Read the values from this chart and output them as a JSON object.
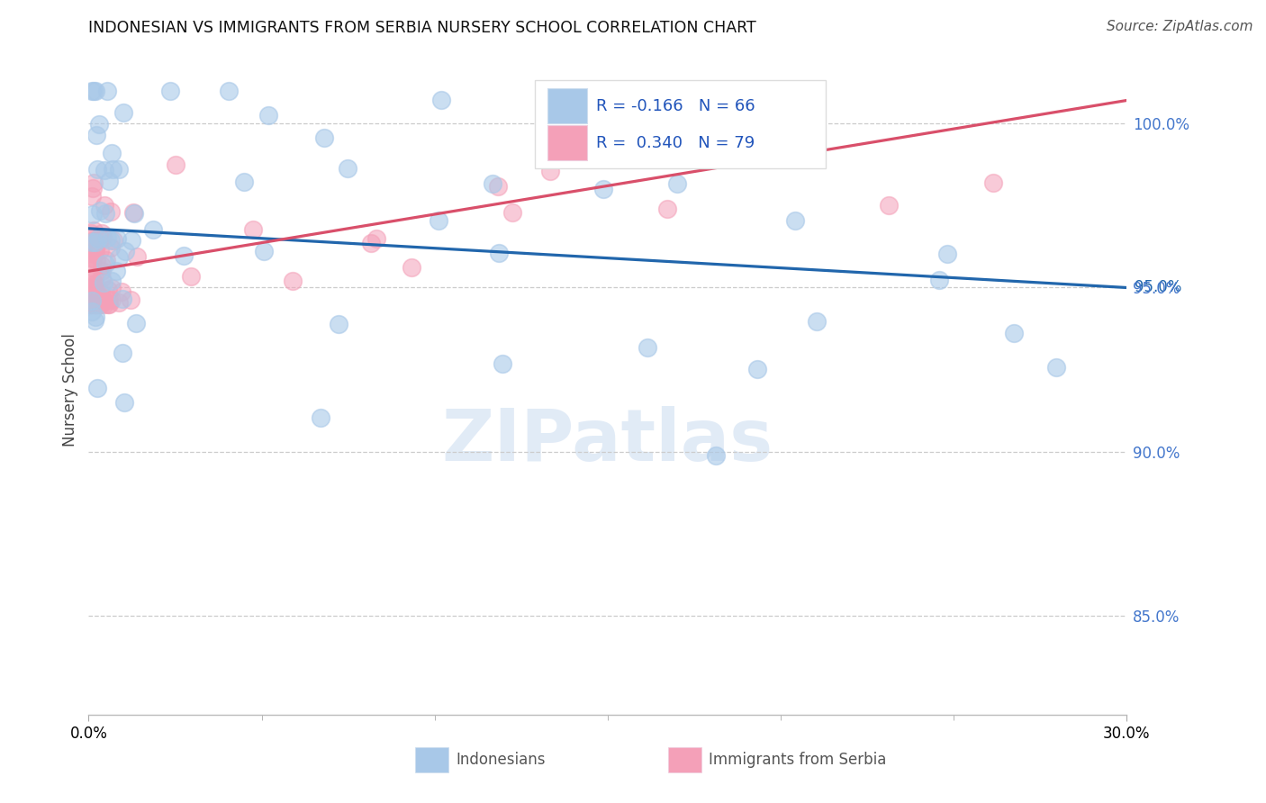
{
  "title": "INDONESIAN VS IMMIGRANTS FROM SERBIA NURSERY SCHOOL CORRELATION CHART",
  "source": "Source: ZipAtlas.com",
  "ylabel": "Nursery School",
  "xmin": 0.0,
  "xmax": 0.3,
  "ymin": 0.82,
  "ymax": 1.018,
  "ytick_vals": [
    0.85,
    0.9,
    0.95,
    1.0
  ],
  "ytick_labels": [
    "85.0%",
    "90.0%",
    "95.0%",
    "100.0%"
  ],
  "xtick_left": "0.0%",
  "xtick_right": "30.0%",
  "blue_scatter_color": "#a8c8e8",
  "pink_scatter_color": "#f4a0b8",
  "blue_line_color": "#2166ac",
  "pink_line_color": "#d94f6a",
  "legend_r1": "R = -0.166",
  "legend_n1": "N = 66",
  "legend_r2": "R =  0.340",
  "legend_n2": "N = 79",
  "legend_text_color": "#2255bb",
  "legend_label_blue": "Indonesians",
  "legend_label_pink": "Immigrants from Serbia",
  "watermark": "ZIPatlas",
  "blue_line_y0": 0.968,
  "blue_line_y1": 0.95,
  "pink_line_y0": 0.955,
  "pink_line_y1": 1.007
}
